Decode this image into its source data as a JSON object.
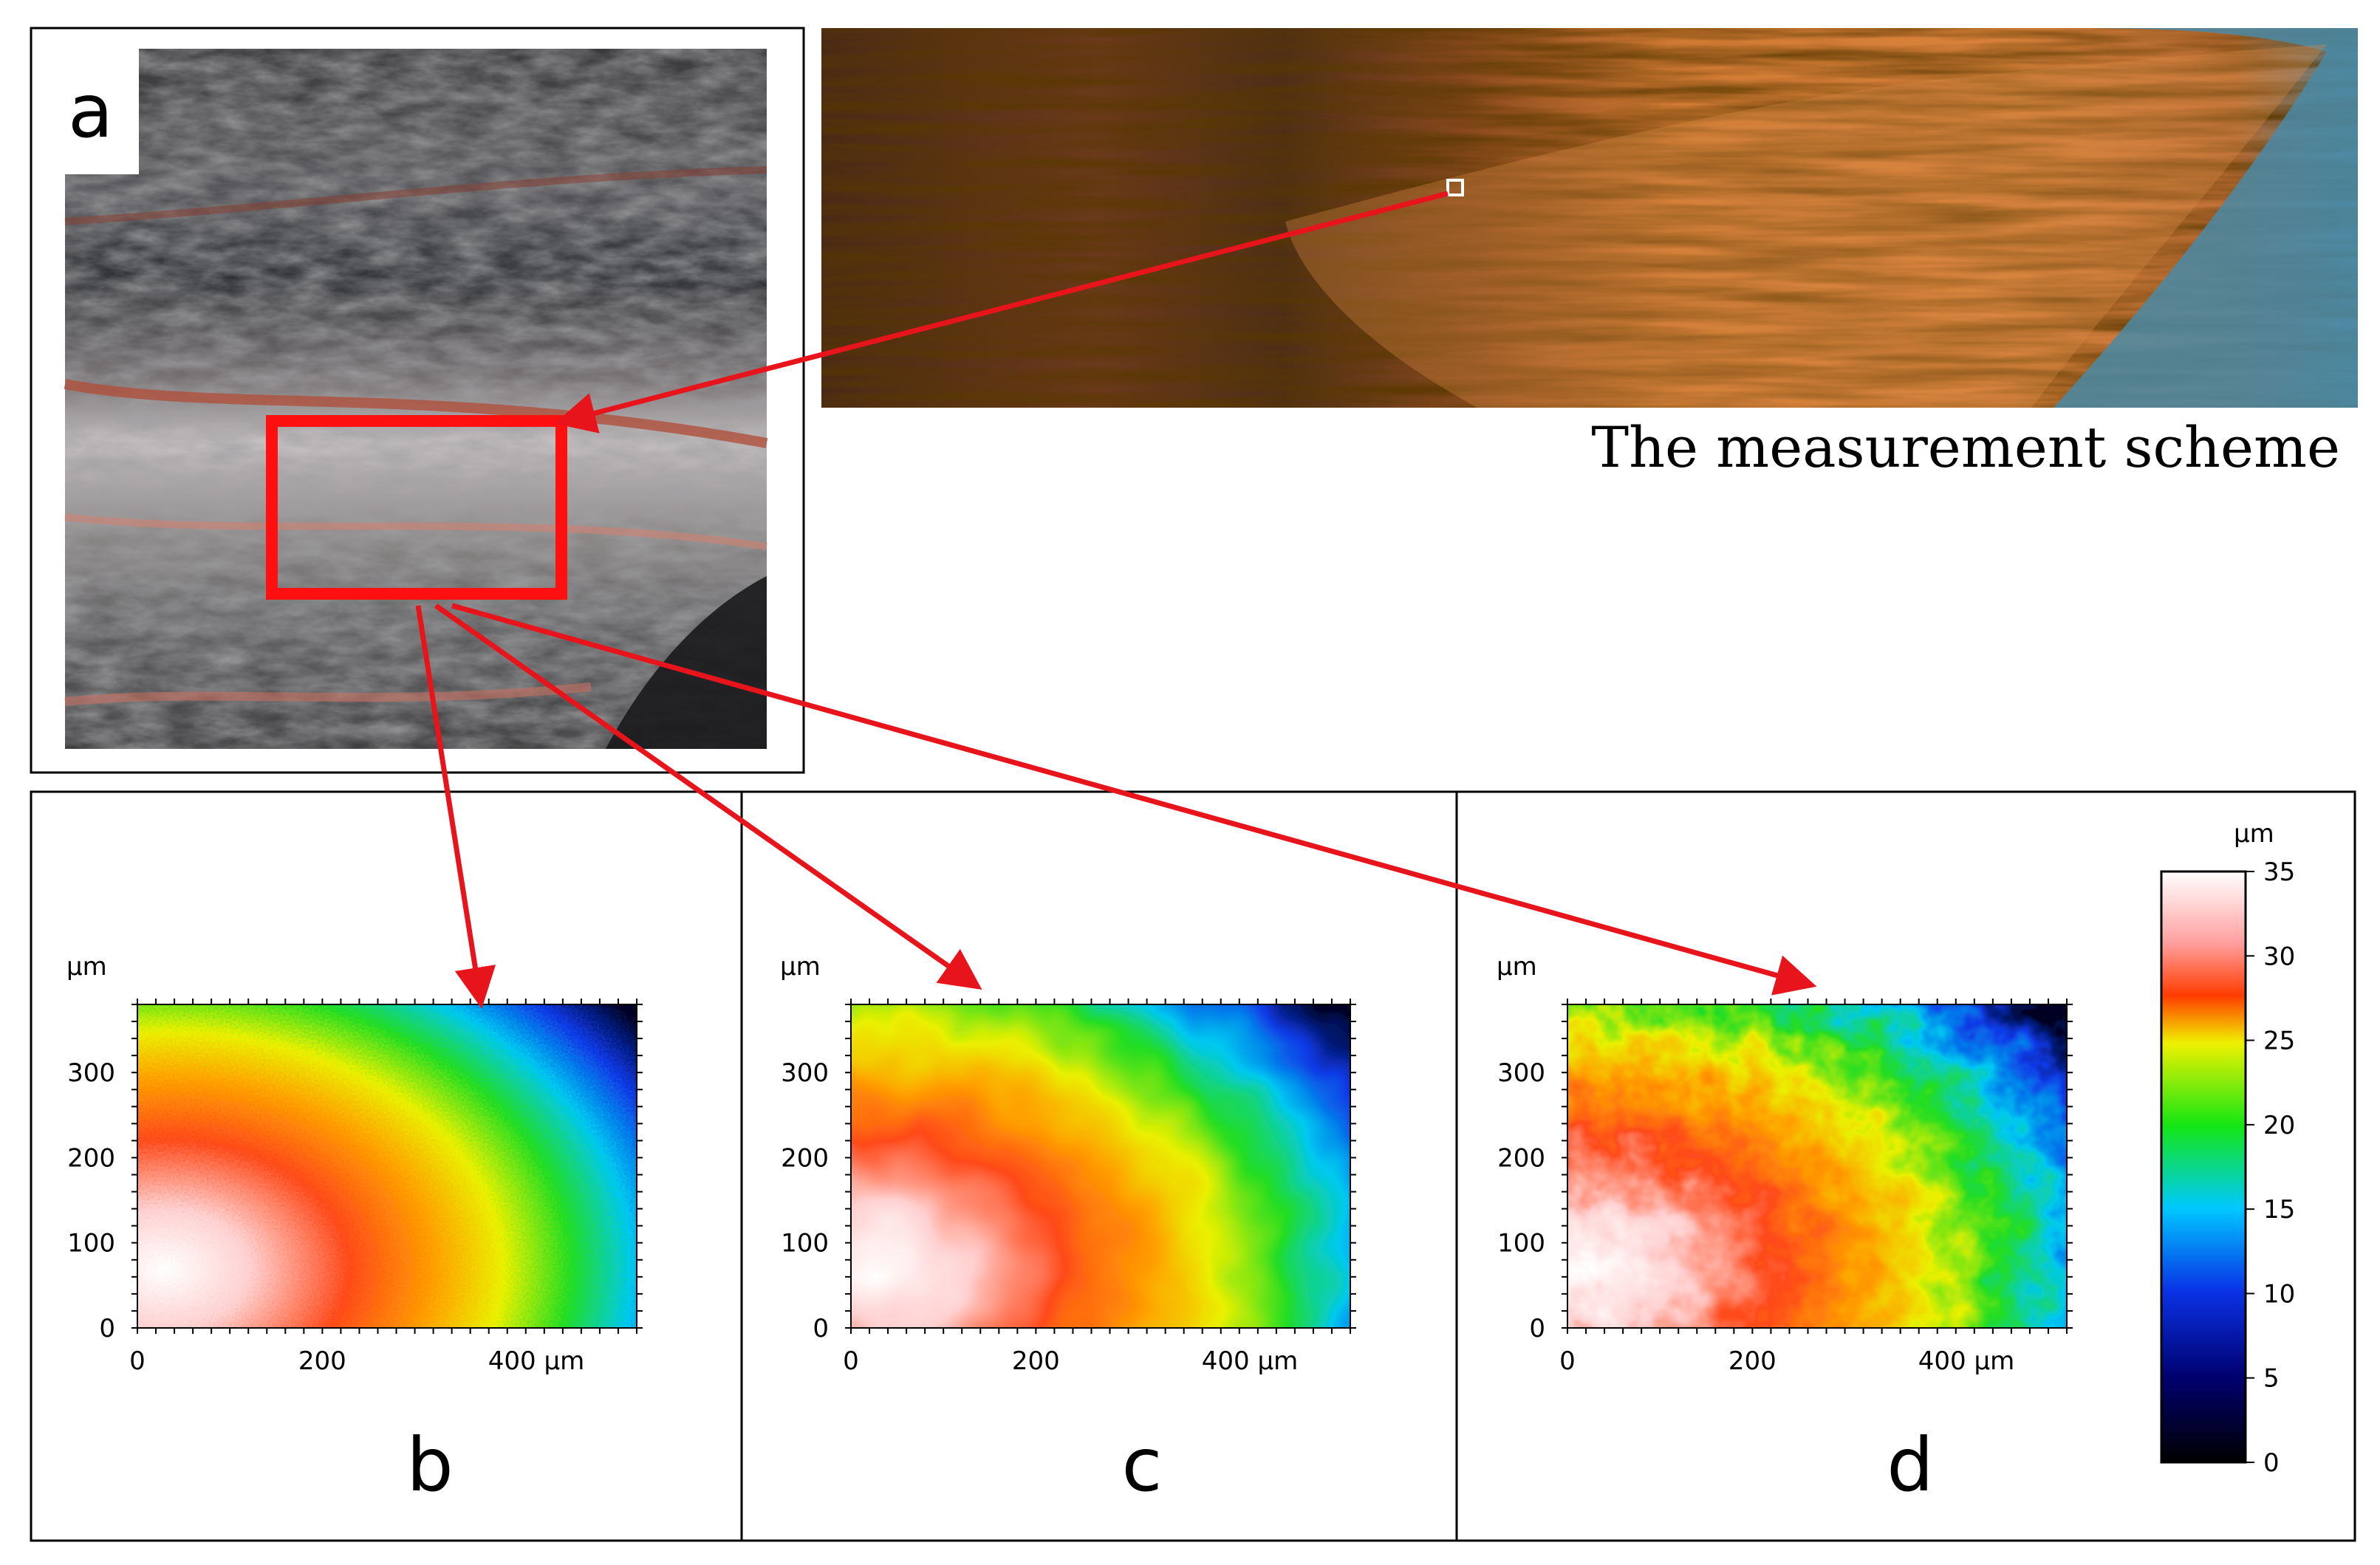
{
  "figure": {
    "scheme_title": "The measurement scheme",
    "panel_labels": {
      "a": "a",
      "b": "b",
      "c": "c",
      "d": "d"
    }
  },
  "colors": {
    "arrow": "#e8141b",
    "frame": "#000000",
    "highlight_box": "#ff1010"
  },
  "chart_data": [
    {
      "type": "heatmap",
      "panel": "b",
      "y_unit": "µm",
      "x_ticks": [
        "0",
        "200",
        "400 µm"
      ],
      "y_ticks": [
        "0",
        "100",
        "200",
        "300"
      ],
      "xlim": [
        0,
        540
      ],
      "ylim": [
        0,
        380
      ],
      "style": "noisy"
    },
    {
      "type": "heatmap",
      "panel": "c",
      "y_unit": "µm",
      "x_ticks": [
        "0",
        "200",
        "400 µm"
      ],
      "y_ticks": [
        "0",
        "100",
        "200",
        "300"
      ],
      "xlim": [
        0,
        540
      ],
      "ylim": [
        0,
        380
      ],
      "style": "smooth"
    },
    {
      "type": "heatmap",
      "panel": "d",
      "y_unit": "µm",
      "x_ticks": [
        "0",
        "200",
        "400 µm"
      ],
      "y_ticks": [
        "0",
        "100",
        "200",
        "300"
      ],
      "xlim": [
        0,
        540
      ],
      "ylim": [
        0,
        380
      ],
      "style": "blotchy"
    }
  ],
  "colorbar": {
    "unit": "µm",
    "range": [
      0,
      35
    ],
    "ticks": [
      "0",
      "5",
      "10",
      "15",
      "20",
      "25",
      "30",
      "35"
    ]
  }
}
